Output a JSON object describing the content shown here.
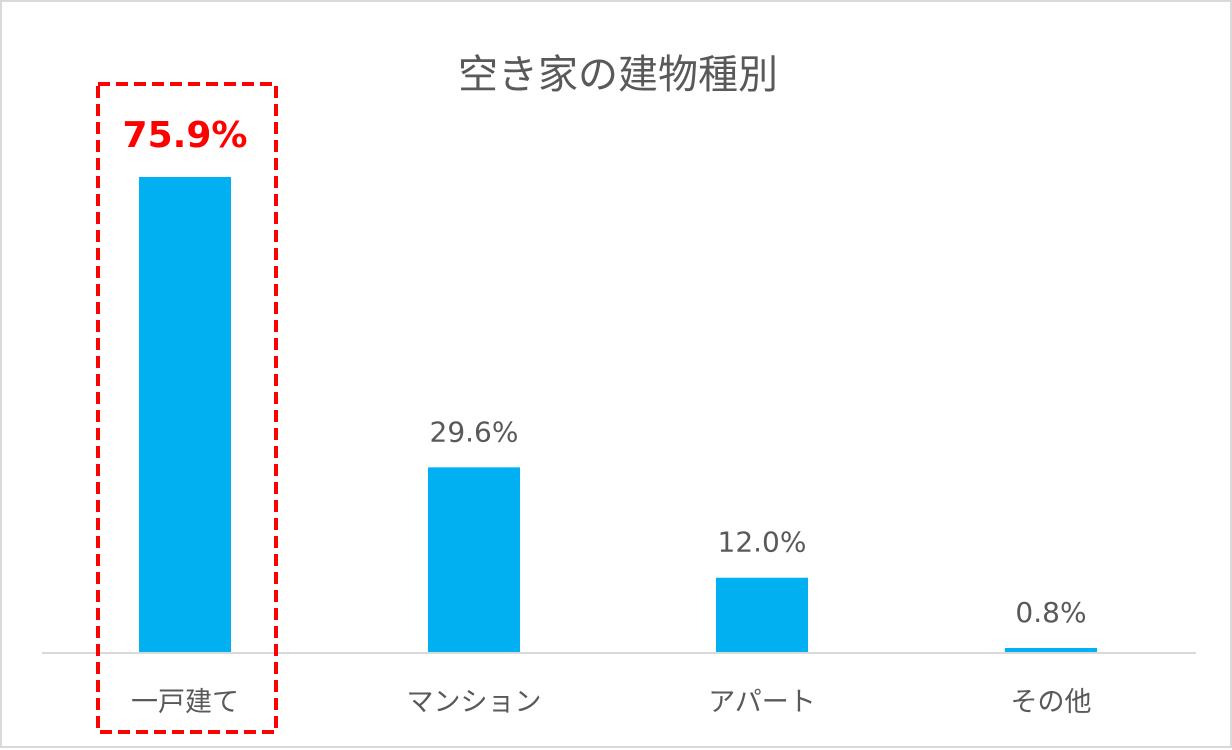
{
  "chart_data": {
    "type": "bar",
    "title": "空き家の建物種別",
    "categories": [
      "一戸建て",
      "マンション",
      "アパート",
      "その他"
    ],
    "values": [
      75.9,
      29.6,
      12.0,
      0.8
    ],
    "value_labels": [
      "75.9%",
      "29.6%",
      "12.0%",
      "0.8%"
    ],
    "unit": "%",
    "ylim": [
      0,
      80
    ],
    "grid": false,
    "legend": "none",
    "highlighted_category": "一戸建て"
  },
  "colors": {
    "bar": "#00b0f0",
    "highlight": "#ff0000",
    "text": "#595959",
    "axis": "#d9d9d9"
  }
}
